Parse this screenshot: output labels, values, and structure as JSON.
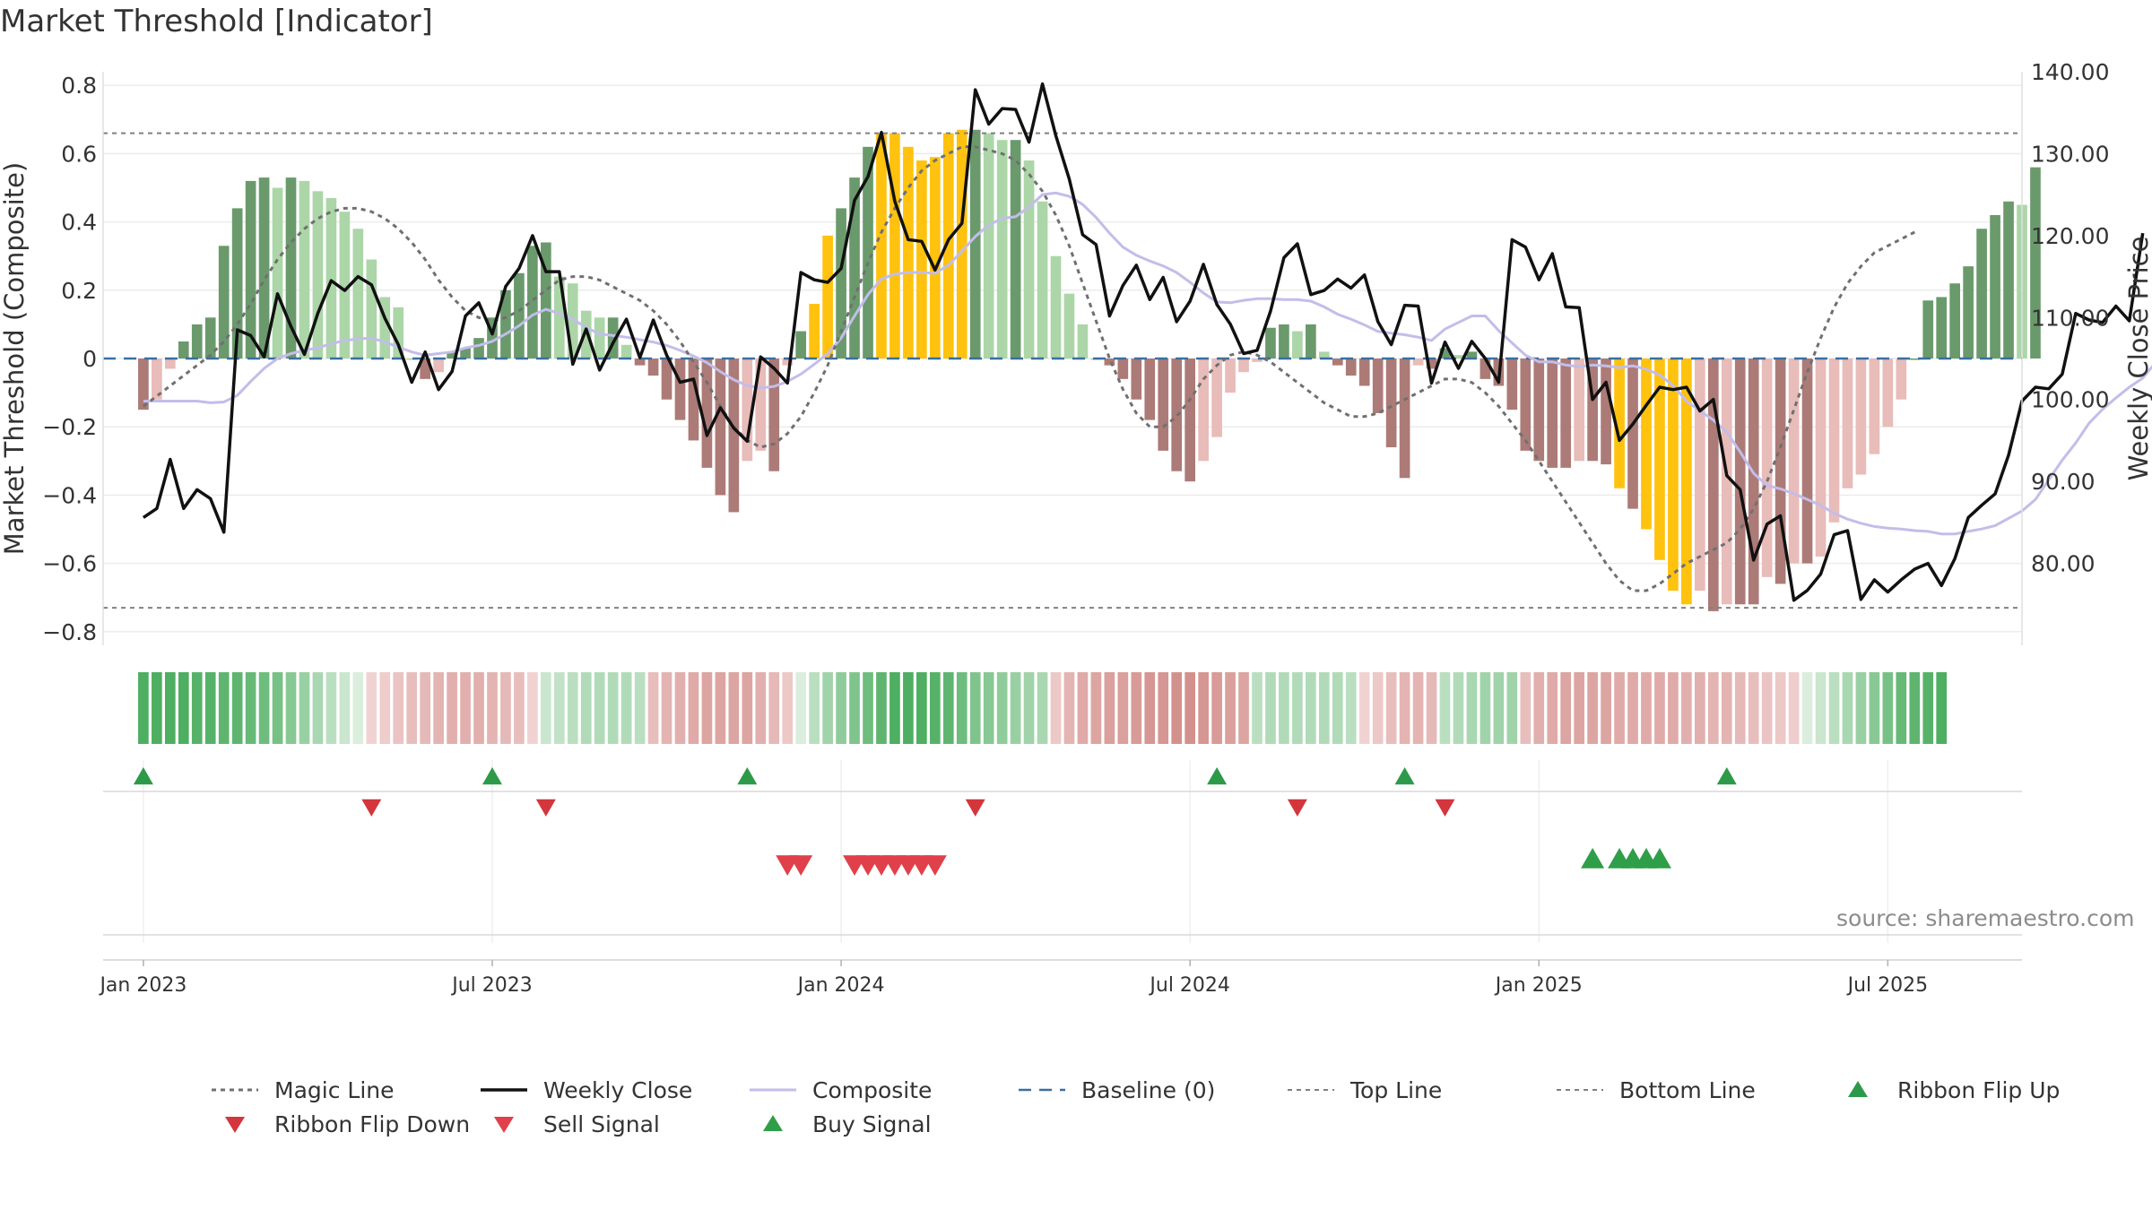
{
  "title": "Market Threshold [Indicator]",
  "source_note": "source: sharemaestro.com",
  "colors": {
    "up_strong": "#6a9a6c",
    "up_light": "#acd6a8",
    "down_strong": "#ac7b77",
    "down_light": "#e8bcb9",
    "extreme": "#ffc20e",
    "weekly_close": "#111111",
    "composite": "#c3bdea",
    "magic_line": "#707070",
    "baseline": "#3a6fa0",
    "threshold_line": "#808080",
    "flip_up": "#2d9a4a",
    "flip_down": "#d3363c",
    "sell": "#e0404a",
    "buy": "#2f9e48"
  },
  "legend": [
    {
      "label": "Magic Line",
      "kind": "magic"
    },
    {
      "label": "Weekly Close",
      "kind": "close"
    },
    {
      "label": "Composite",
      "kind": "composite"
    },
    {
      "label": "Baseline (0)",
      "kind": "baseline"
    },
    {
      "label": "Top Line",
      "kind": "top"
    },
    {
      "label": "Bottom Line",
      "kind": "bottom"
    },
    {
      "label": "Ribbon Flip Up",
      "kind": "flipup"
    },
    {
      "label": "Ribbon Flip Down",
      "kind": "flipdown"
    },
    {
      "label": "Sell Signal",
      "kind": "sell"
    },
    {
      "label": "Buy Signal",
      "kind": "buy"
    }
  ],
  "chart_data": {
    "type": "bar",
    "title": "Market Threshold [Indicator]",
    "ylabel": "Market Threshold (Composite)",
    "y2label": "Weekly Close Price",
    "ylim": [
      -0.84,
      0.84
    ],
    "y2lim": [
      70,
      140
    ],
    "yticks": [
      "0.8",
      "0.6",
      "0.4",
      "0.2",
      "0",
      "−0.2",
      "−0.4",
      "−0.6",
      "−0.8"
    ],
    "y2ticks": [
      "140.00",
      "130.00",
      "120.00",
      "110.00",
      "100.00",
      "90.00",
      "80.00"
    ],
    "xticks": [
      "Jan 2023",
      "Jul 2023",
      "Jan 2024",
      "Jul 2024",
      "Jan 2025",
      "Jul 2025"
    ],
    "x_range_weeks": [
      -3,
      140
    ],
    "top_line": 0.66,
    "bottom_line": -0.73,
    "baseline": 0,
    "grid": true,
    "legend_position": "bottom",
    "series": [
      {
        "name": "Composite",
        "values": [
          -0.15,
          -0.12,
          -0.03,
          0.05,
          0.1,
          0.12,
          0.33,
          0.44,
          0.52,
          0.53,
          0.5,
          0.53,
          0.52,
          0.49,
          0.47,
          0.43,
          0.38,
          0.29,
          0.18,
          0.15,
          0.0,
          -0.06,
          -0.04,
          0.02,
          0.03,
          0.06,
          0.12,
          0.2,
          0.25,
          0.33,
          0.34,
          0.24,
          0.22,
          0.14,
          0.12,
          0.12,
          0.04,
          -0.02,
          -0.05,
          -0.12,
          -0.18,
          -0.24,
          -0.32,
          -0.4,
          -0.45,
          -0.3,
          -0.27,
          -0.33,
          -0.02,
          0.08,
          0.16,
          0.36,
          0.44,
          0.53,
          0.62,
          0.66,
          0.66,
          0.62,
          0.58,
          0.59,
          0.66,
          0.67,
          0.67,
          0.66,
          0.64,
          0.64,
          0.58,
          0.46,
          0.3,
          0.19,
          0.1,
          0.0,
          -0.02,
          -0.06,
          -0.12,
          -0.18,
          -0.27,
          -0.33,
          -0.36,
          -0.3,
          -0.23,
          -0.1,
          -0.04,
          -0.01,
          0.09,
          0.1,
          0.08,
          0.1,
          0.02,
          -0.02,
          -0.05,
          -0.08,
          -0.16,
          -0.26,
          -0.35,
          -0.02,
          -0.03,
          0.03,
          0.01,
          0.02,
          -0.06,
          -0.08,
          -0.15,
          -0.27,
          -0.3,
          -0.32,
          -0.32,
          -0.3,
          -0.3,
          -0.31,
          -0.38,
          -0.44,
          -0.5,
          -0.59,
          -0.68,
          -0.72,
          -0.68,
          -0.74,
          -0.72,
          -0.72,
          -0.72,
          -0.64,
          -0.66,
          -0.6,
          -0.6,
          -0.58,
          -0.48,
          -0.38,
          -0.34,
          -0.28,
          -0.2,
          -0.12,
          0.0,
          0.17,
          0.18,
          0.22,
          0.27,
          0.38,
          0.42,
          0.46,
          0.45,
          0.56
        ]
      },
      {
        "name": "Weekly Close",
        "values": [
          85.6,
          86.7,
          92.7,
          86.7,
          89.0,
          87.9,
          83.8,
          108.5,
          107.8,
          105.2,
          112.9,
          108.9,
          105.5,
          110.5,
          114.5,
          113.3,
          115.0,
          114.0,
          109.9,
          106.7,
          102.1,
          105.8,
          101.2,
          103.4,
          110.2,
          111.8,
          108.0,
          113.8,
          116.0,
          120.0,
          115.6,
          115.6,
          104.3,
          108.6,
          103.6,
          106.9,
          109.8,
          105.1,
          109.7,
          105.4,
          102.1,
          102.5,
          95.6,
          99.0,
          96.5,
          94.9,
          105.2,
          103.8,
          102.0,
          115.5,
          114.6,
          114.3,
          116.0,
          124.3,
          127.2,
          132.6,
          124.2,
          119.5,
          119.3,
          115.8,
          119.5,
          121.5,
          137.8,
          133.6,
          135.5,
          135.4,
          131.4,
          138.5,
          132.2,
          126.9,
          120.1,
          118.9,
          110.2,
          113.9,
          116.4,
          112.2,
          114.9,
          109.5,
          112.0,
          116.5,
          111.6,
          109.2,
          105.6,
          106.0,
          110.8,
          117.3,
          119.0,
          112.8,
          113.3,
          114.7,
          113.6,
          115.2,
          109.5,
          106.7,
          111.5,
          111.4,
          102.0,
          107.0,
          103.8,
          107.1,
          105.0,
          102.1,
          119.5,
          118.6,
          114.6,
          117.8,
          111.3,
          111.2,
          100.0,
          102.1,
          95.0,
          97.0,
          99.3,
          101.5,
          101.2,
          101.5,
          98.6,
          100.0,
          90.7,
          89.0,
          80.4,
          84.8,
          85.8,
          75.5,
          76.7,
          78.7,
          83.5,
          84.0,
          75.6,
          78.0,
          76.5,
          78.0,
          79.3,
          80.0,
          77.3,
          80.6,
          85.6,
          87.1,
          88.5,
          93.2,
          99.8,
          101.5,
          101.3,
          103.1,
          110.5,
          109.7,
          109.4,
          111.4,
          109.6,
          120.3
        ]
      },
      {
        "name": "Composite",
        "values": [
          99.8,
          99.8,
          99.8,
          99.8,
          99.8,
          99.6,
          99.7,
          100.5,
          102.2,
          103.8,
          105.0,
          105.6,
          106.0,
          106.3,
          106.8,
          107.2,
          107.4,
          107.5,
          107.0,
          106.4,
          105.8,
          105.4,
          105.6,
          105.8,
          106.3,
          106.6,
          107.1,
          108.0,
          109.0,
          110.3,
          111.0,
          110.5,
          109.8,
          108.8,
          108.0,
          107.8,
          107.6,
          107.3,
          107.0,
          106.6,
          106.0,
          105.3,
          104.5,
          103.4,
          102.4,
          101.7,
          101.4,
          101.6,
          102.2,
          103.1,
          104.3,
          105.6,
          107.5,
          110.2,
          112.8,
          114.7,
          115.3,
          115.5,
          115.5,
          115.4,
          116.4,
          118.1,
          119.9,
          121.3,
          122.1,
          122.3,
          123.5,
          125.0,
          125.2,
          124.8,
          123.8,
          122.2,
          120.3,
          118.6,
          117.6,
          116.9,
          116.3,
          115.5,
          114.3,
          113.0,
          111.9,
          111.8,
          112.1,
          112.3,
          112.3,
          112.2,
          112.2,
          112.0,
          111.3,
          110.4,
          109.8,
          109.1,
          108.3,
          108.1,
          107.9,
          107.6,
          107.2,
          108.6,
          109.4,
          110.2,
          110.2,
          108.4,
          106.9,
          105.4,
          104.6,
          104.6,
          104.2,
          104.0,
          104.2,
          104.1,
          103.9,
          104.1,
          103.7,
          103.0,
          101.7,
          99.8,
          98.6,
          97.5,
          96.0,
          93.6,
          91.0,
          89.5,
          89.1,
          88.5,
          87.8,
          87.1,
          86.1,
          85.4,
          84.9,
          84.5,
          84.3,
          84.2,
          84.0,
          83.9,
          83.6,
          83.6,
          83.9,
          84.2,
          84.6,
          85.5,
          86.4,
          87.8,
          90.2,
          92.6,
          94.7,
          97.1,
          98.8,
          100.2,
          101.5,
          102.6,
          104.6
        ]
      },
      {
        "name": "Magic Line",
        "values": [
          -0.14,
          -0.11,
          -0.08,
          -0.05,
          -0.02,
          0.01,
          0.05,
          0.1,
          0.16,
          0.23,
          0.29,
          0.34,
          0.38,
          0.41,
          0.43,
          0.44,
          0.44,
          0.43,
          0.41,
          0.38,
          0.34,
          0.29,
          0.23,
          0.18,
          0.14,
          0.12,
          0.11,
          0.12,
          0.14,
          0.17,
          0.2,
          0.23,
          0.24,
          0.24,
          0.23,
          0.21,
          0.19,
          0.17,
          0.14,
          0.1,
          0.05,
          -0.01,
          -0.07,
          -0.14,
          -0.2,
          -0.24,
          -0.26,
          -0.25,
          -0.22,
          -0.17,
          -0.1,
          -0.02,
          0.08,
          0.18,
          0.28,
          0.37,
          0.44,
          0.5,
          0.55,
          0.58,
          0.6,
          0.62,
          0.62,
          0.61,
          0.6,
          0.58,
          0.54,
          0.49,
          0.42,
          0.33,
          0.22,
          0.11,
          0.0,
          -0.09,
          -0.16,
          -0.2,
          -0.2,
          -0.17,
          -0.12,
          -0.06,
          -0.02,
          0.01,
          0.02,
          0.01,
          -0.01,
          -0.04,
          -0.07,
          -0.1,
          -0.13,
          -0.15,
          -0.17,
          -0.17,
          -0.16,
          -0.14,
          -0.12,
          -0.1,
          -0.08,
          -0.06,
          -0.06,
          -0.07,
          -0.1,
          -0.14,
          -0.19,
          -0.24,
          -0.3,
          -0.36,
          -0.42,
          -0.48,
          -0.54,
          -0.6,
          -0.65,
          -0.68,
          -0.68,
          -0.66,
          -0.63,
          -0.6,
          -0.58,
          -0.56,
          -0.54,
          -0.5,
          -0.44,
          -0.36,
          -0.26,
          -0.15,
          -0.04,
          0.06,
          0.15,
          0.22,
          0.27,
          0.31,
          0.33,
          0.35,
          0.37
        ]
      }
    ],
    "ribbon_values": [
      0.95,
      0.95,
      0.95,
      0.95,
      0.9,
      0.9,
      0.85,
      0.85,
      0.8,
      0.75,
      0.7,
      0.6,
      0.5,
      0.4,
      0.3,
      0.2,
      0.1,
      -0.1,
      -0.15,
      -0.25,
      -0.3,
      -0.35,
      -0.4,
      -0.45,
      -0.45,
      -0.45,
      -0.4,
      -0.35,
      -0.3,
      -0.1,
      0.2,
      0.25,
      0.3,
      0.35,
      0.35,
      0.35,
      0.35,
      0.3,
      -0.3,
      -0.4,
      -0.45,
      -0.5,
      -0.55,
      -0.55,
      -0.55,
      -0.55,
      -0.45,
      -0.35,
      -0.2,
      0.1,
      0.3,
      0.45,
      0.55,
      0.65,
      0.75,
      0.85,
      0.95,
      0.95,
      0.95,
      0.9,
      0.85,
      0.75,
      0.65,
      0.6,
      0.55,
      0.5,
      0.45,
      0.4,
      -0.2,
      -0.4,
      -0.5,
      -0.55,
      -0.6,
      -0.6,
      -0.65,
      -0.7,
      -0.7,
      -0.75,
      -0.75,
      -0.7,
      -0.65,
      -0.6,
      -0.55,
      0.3,
      0.35,
      0.35,
      0.35,
      0.35,
      0.35,
      0.35,
      0.3,
      -0.1,
      -0.2,
      -0.3,
      -0.4,
      -0.4,
      -0.35,
      0.3,
      0.35,
      0.4,
      0.45,
      0.45,
      0.45,
      -0.3,
      -0.45,
      -0.5,
      -0.55,
      -0.55,
      -0.55,
      -0.55,
      -0.5,
      -0.5,
      -0.5,
      -0.5,
      -0.5,
      -0.45,
      -0.45,
      -0.4,
      -0.4,
      -0.35,
      -0.3,
      -0.25,
      -0.2,
      -0.15,
      0.1,
      0.2,
      0.3,
      0.4,
      0.5,
      0.6,
      0.7,
      0.8,
      0.85,
      0.9,
      0.95
    ],
    "ribbon_flip_up_weeks": [
      0,
      26,
      45,
      80,
      94,
      118
    ],
    "ribbon_flip_down_weeks": [
      17,
      30,
      62,
      86,
      97
    ],
    "sell_signal_weeks": [
      48,
      49,
      53,
      54,
      55,
      56,
      57,
      58,
      59
    ],
    "buy_signal_weeks": [
      108,
      110,
      111,
      112,
      113
    ],
    "extreme_weeks": [
      50,
      51,
      55,
      56,
      57,
      58,
      59,
      60,
      61,
      110,
      112,
      113,
      114,
      115
    ]
  }
}
